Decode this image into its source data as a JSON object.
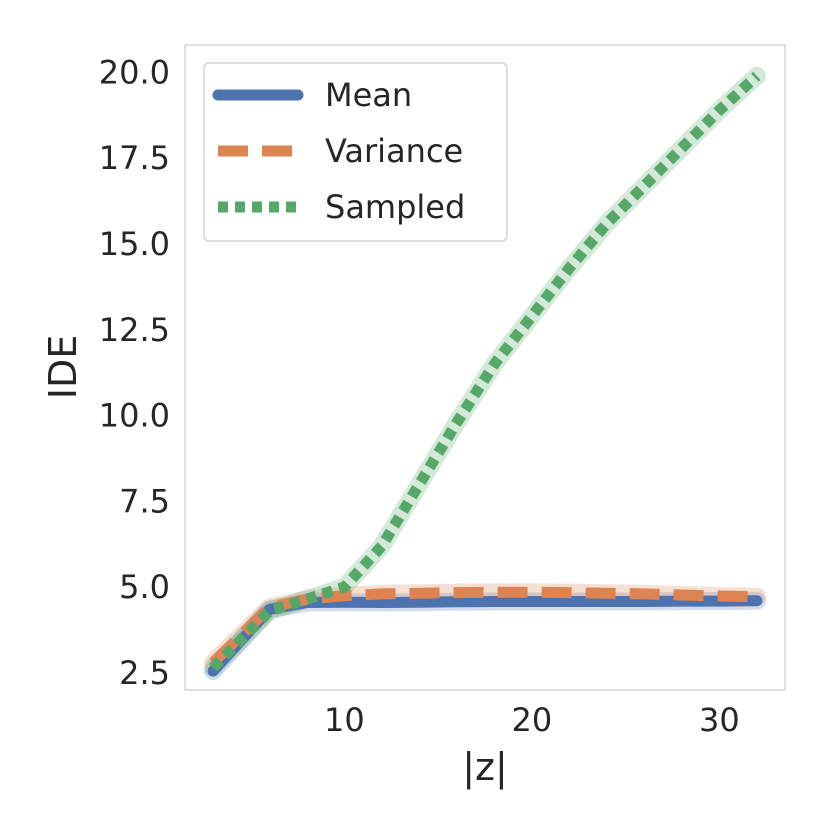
{
  "chart_data": {
    "type": "line",
    "title": "",
    "xlabel": "|z|",
    "ylabel": "IDE",
    "xlim": [
      1.5,
      33.5
    ],
    "ylim": [
      2.0,
      20.8
    ],
    "xticks": [
      10,
      20,
      30
    ],
    "xtick_labels": [
      "10",
      "20",
      "30"
    ],
    "yticks": [
      2.5,
      5.0,
      7.5,
      10.0,
      12.5,
      15.0,
      17.5,
      20.0
    ],
    "ytick_labels": [
      "2.5",
      "5.0",
      "7.5",
      "10.0",
      "12.5",
      "15.0",
      "17.5",
      "20.0"
    ],
    "grid": false,
    "legend_position": "top-left",
    "x": [
      3,
      6,
      8,
      10,
      12,
      14,
      16,
      18,
      20,
      22,
      24,
      26,
      28,
      30,
      32
    ],
    "series": [
      {
        "name": "Mean",
        "color": "#4c72b0",
        "style": "solid",
        "values": [
          2.55,
          4.35,
          4.55,
          4.56,
          4.55,
          4.56,
          4.57,
          4.58,
          4.58,
          4.58,
          4.58,
          4.58,
          4.59,
          4.59,
          4.6
        ]
      },
      {
        "name": "Variance",
        "color": "#dd8452",
        "style": "dashed",
        "values": [
          2.8,
          4.4,
          4.65,
          4.75,
          4.8,
          4.82,
          4.84,
          4.85,
          4.85,
          4.84,
          4.82,
          4.8,
          4.77,
          4.74,
          4.72
        ]
      },
      {
        "name": "Sampled",
        "color": "#55a868",
        "style": "dotted",
        "values": [
          2.65,
          4.3,
          4.65,
          5.0,
          6.2,
          8.0,
          9.8,
          11.5,
          12.9,
          14.3,
          15.6,
          16.7,
          17.8,
          18.9,
          19.9
        ]
      }
    ]
  }
}
